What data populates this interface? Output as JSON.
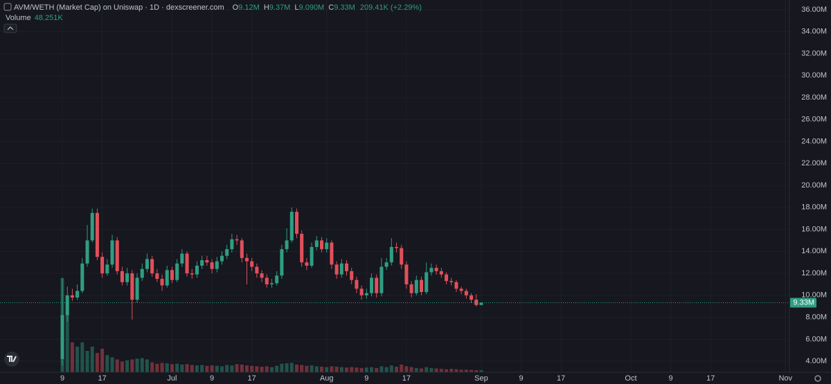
{
  "chart_data": {
    "type": "candlestick",
    "title": "AVM/WETH (Market Cap) on Uniswap · 1D · dexscreener.com",
    "legend": {
      "o_label": "O",
      "o": "9.12M",
      "h_label": "H",
      "h": "9.37M",
      "l_label": "L",
      "l": "9.090M",
      "c_label": "C",
      "c": "9.33M",
      "change": "209.41K (+2.29%)"
    },
    "last_price_label": "9.33M",
    "up_color": "#2f9e83",
    "down_color": "#e0505a",
    "grid": true,
    "x": [
      0,
      1,
      2,
      3,
      4,
      5,
      6,
      7,
      8,
      9,
      10,
      11,
      12,
      13,
      14,
      15,
      16,
      17,
      18,
      19,
      20,
      21,
      22,
      23,
      24,
      25,
      26,
      27,
      28,
      29,
      30,
      31,
      32,
      33,
      34,
      35,
      36,
      37,
      38,
      39,
      40,
      41,
      42,
      43,
      44,
      45,
      46,
      47,
      48,
      49,
      50,
      51,
      52,
      53,
      54,
      55,
      56,
      57,
      58,
      59,
      60,
      61,
      62,
      63,
      64,
      65,
      66,
      67,
      68,
      69,
      70,
      71,
      72,
      73,
      74,
      75,
      76,
      77,
      78,
      79,
      80,
      81,
      82,
      83,
      84
    ],
    "open": [
      4.2,
      8.2,
      10.0,
      9.8,
      10.4,
      12.9,
      15.0,
      17.5,
      13.5,
      12.0,
      12.8,
      15.0,
      12.2,
      11.2,
      12.0,
      9.6,
      11.6,
      12.4,
      13.3,
      12.0,
      11.5,
      10.9,
      12.3,
      11.4,
      12.9,
      13.8,
      12.0,
      11.9,
      12.7,
      13.2,
      13.0,
      12.4,
      13.1,
      13.6,
      14.2,
      15.1,
      15.0,
      13.4,
      13.1,
      12.6,
      12.0,
      11.6,
      11.0,
      11.1,
      11.8,
      14.2,
      15.0,
      17.6,
      15.6,
      13.0,
      12.7,
      14.4,
      15.0,
      14.2,
      14.8,
      12.8,
      11.9,
      12.9,
      12.2,
      11.4,
      10.6,
      10.0,
      10.2,
      11.6,
      10.2,
      12.6,
      13.0,
      14.4,
      14.3,
      12.8,
      11.0,
      10.2,
      11.4,
      10.3,
      12.1,
      12.5,
      12.2,
      11.9,
      11.3,
      11.2,
      10.6,
      10.4,
      10.0,
      9.6,
      9.12
    ],
    "high": [
      11.6,
      10.8,
      10.6,
      11.0,
      13.4,
      16.4,
      17.9,
      17.9,
      13.9,
      13.3,
      15.5,
      15.3,
      12.6,
      12.5,
      12.3,
      12.0,
      12.9,
      13.8,
      13.6,
      12.4,
      11.9,
      12.7,
      12.6,
      13.3,
      14.2,
      14.0,
      12.4,
      13.1,
      13.6,
      13.6,
      13.3,
      13.5,
      14.0,
      14.6,
      15.6,
      15.5,
      15.2,
      13.8,
      13.4,
      12.9,
      12.3,
      11.9,
      11.5,
      12.2,
      14.6,
      16.1,
      18.0,
      17.9,
      15.9,
      13.4,
      14.8,
      15.4,
      15.3,
      15.2,
      15.0,
      13.1,
      13.3,
      13.2,
      12.5,
      11.7,
      10.9,
      10.6,
      12.0,
      11.9,
      13.4,
      13.4,
      15.2,
      14.8,
      14.6,
      13.1,
      11.3,
      11.8,
      11.7,
      13.0,
      12.9,
      12.8,
      12.5,
      12.1,
      11.6,
      11.4,
      10.8,
      10.6,
      10.2,
      10.1,
      9.37
    ],
    "low": [
      3.6,
      7.6,
      9.5,
      9.6,
      10.2,
      12.6,
      14.8,
      13.2,
      11.6,
      11.8,
      12.5,
      11.9,
      10.9,
      10.9,
      7.8,
      9.3,
      11.3,
      12.1,
      11.7,
      11.2,
      10.4,
      10.7,
      11.1,
      11.2,
      12.6,
      11.7,
      11.5,
      11.6,
      12.4,
      12.7,
      12.0,
      12.1,
      12.8,
      13.3,
      13.9,
      14.6,
      13.0,
      11.0,
      12.2,
      11.6,
      11.2,
      10.7,
      10.7,
      10.9,
      11.5,
      13.9,
      14.8,
      15.2,
      12.6,
      12.3,
      12.5,
      14.1,
      13.9,
      13.9,
      12.4,
      11.5,
      11.6,
      11.8,
      11.0,
      10.2,
      9.6,
      9.7,
      9.9,
      9.8,
      9.9,
      12.3,
      12.7,
      13.9,
      12.4,
      10.6,
      9.8,
      10.0,
      10.0,
      10.1,
      11.8,
      11.9,
      11.6,
      11.0,
      10.9,
      10.3,
      10.1,
      9.7,
      9.3,
      9.0,
      9.09
    ],
    "close": [
      8.2,
      10.0,
      9.8,
      10.4,
      12.9,
      15.0,
      17.5,
      13.5,
      12.0,
      12.8,
      15.0,
      12.2,
      11.2,
      12.0,
      9.6,
      11.6,
      12.4,
      13.3,
      12.0,
      11.5,
      10.9,
      12.3,
      11.4,
      12.9,
      13.8,
      12.0,
      11.9,
      12.7,
      13.2,
      13.0,
      12.4,
      13.1,
      13.6,
      14.2,
      15.1,
      15.0,
      13.4,
      13.1,
      12.6,
      12.0,
      11.6,
      11.0,
      11.1,
      11.8,
      14.2,
      15.0,
      17.6,
      15.6,
      13.0,
      12.7,
      14.4,
      15.0,
      14.2,
      14.8,
      12.8,
      11.9,
      12.9,
      12.2,
      11.4,
      10.6,
      10.0,
      10.2,
      11.6,
      10.2,
      12.6,
      13.0,
      14.4,
      14.3,
      12.8,
      11.0,
      10.2,
      11.4,
      10.3,
      12.1,
      12.5,
      12.2,
      11.9,
      11.3,
      11.2,
      10.6,
      10.4,
      10.0,
      9.6,
      9.12,
      9.33
    ],
    "volume": {
      "name": "Volume",
      "last_label": "48.251K",
      "values": [
        2200,
        1400,
        700,
        600,
        700,
        500,
        600,
        450,
        550,
        400,
        350,
        300,
        250,
        280,
        300,
        320,
        330,
        300,
        230,
        200,
        220,
        210,
        190,
        200,
        180,
        190,
        170,
        160,
        170,
        150,
        160,
        150,
        140,
        170,
        160,
        190,
        180,
        160,
        150,
        140,
        130,
        140,
        120,
        150,
        200,
        210,
        220,
        180,
        170,
        150,
        160,
        140,
        130,
        120,
        140,
        130,
        120,
        110,
        120,
        110,
        100,
        110,
        120,
        100,
        140,
        120,
        160,
        130,
        180,
        140,
        120,
        100,
        90,
        120,
        100,
        90,
        80,
        70,
        80,
        70,
        60,
        60,
        55,
        50,
        48.251
      ]
    },
    "xlim": [
      -12.5,
      145.8
    ],
    "xticks": [
      {
        "value": 0,
        "label": "9"
      },
      {
        "value": 8,
        "label": "17"
      },
      {
        "value": 22,
        "label": "Jul"
      },
      {
        "value": 30,
        "label": "9"
      },
      {
        "value": 38,
        "label": "17"
      },
      {
        "value": 53,
        "label": "Aug"
      },
      {
        "value": 61,
        "label": "9"
      },
      {
        "value": 69,
        "label": "17"
      },
      {
        "value": 84,
        "label": "Sep"
      },
      {
        "value": 92,
        "label": "9"
      },
      {
        "value": 100,
        "label": "17"
      },
      {
        "value": 114,
        "label": "Oct"
      },
      {
        "value": 122,
        "label": "9"
      },
      {
        "value": 130,
        "label": "17"
      },
      {
        "value": 145,
        "label": "Nov"
      }
    ],
    "ylim": [
      3,
      36.88
    ],
    "yticks": [
      {
        "value": 4,
        "label": "4.00M"
      },
      {
        "value": 6,
        "label": "6.00M"
      },
      {
        "value": 8,
        "label": "8.00M"
      },
      {
        "value": 10,
        "label": "10.00M"
      },
      {
        "value": 12,
        "label": "12.00M"
      },
      {
        "value": 14,
        "label": "14.00M"
      },
      {
        "value": 16,
        "label": "16.00M"
      },
      {
        "value": 18,
        "label": "18.00M"
      },
      {
        "value": 20,
        "label": "20.00M"
      },
      {
        "value": 22,
        "label": "22.00M"
      },
      {
        "value": 24,
        "label": "24.00M"
      },
      {
        "value": 26,
        "label": "26.00M"
      },
      {
        "value": 28,
        "label": "28.00M"
      },
      {
        "value": 30,
        "label": "30.00M"
      },
      {
        "value": 32,
        "label": "32.00M"
      },
      {
        "value": 34,
        "label": "34.00M"
      },
      {
        "value": 36,
        "label": "36.00M"
      }
    ]
  }
}
